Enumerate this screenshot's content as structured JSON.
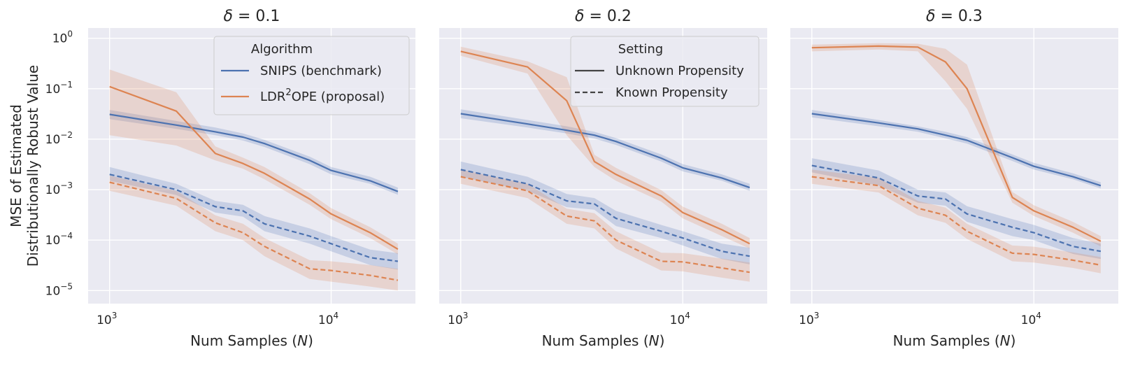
{
  "colors": {
    "snips": "#4c72b0",
    "ldr": "#dd8452",
    "panel_bg": "#eaeaf2",
    "grid": "#ffffff",
    "legend_line": "#444444"
  },
  "y_axis_label_line1": "MSE of Estimated",
  "y_axis_label_line2": "Distributionally Robust Value",
  "x_axis_label_prefix": "Num Samples (",
  "x_axis_label_var": "N",
  "x_axis_label_suffix": ")",
  "title_prefix": "δ",
  "title_mid": " = ",
  "legend_algorithm": {
    "title": "Algorithm",
    "entries": [
      {
        "label": "SNIPS (benchmark)",
        "series": "snips"
      },
      {
        "label_pre": "LDR",
        "label_sup": "2",
        "label_post": "OPE (proposal)",
        "series": "ldr"
      }
    ]
  },
  "legend_setting": {
    "title": "Setting",
    "entries": [
      {
        "label": "Unknown Propensity",
        "style": "solid"
      },
      {
        "label": "Known Propensity",
        "style": "dashed"
      }
    ]
  },
  "chart_data": [
    {
      "type": "line",
      "title": "δ = 0.1",
      "delta": "0.1",
      "x": [
        1000,
        2000,
        3000,
        4000,
        5000,
        8000,
        10000,
        15000,
        20000
      ],
      "xscale": "log",
      "yscale": "log",
      "xlim": [
        800,
        24000
      ],
      "ylim": [
        5.5e-06,
        1.6
      ],
      "xticks": [
        {
          "base": "10",
          "exp": "3",
          "value": 1000
        },
        {
          "base": "10",
          "exp": "4",
          "value": 10000
        }
      ],
      "yticks": [
        {
          "base": "10",
          "exp": "−5",
          "value": 1e-05
        },
        {
          "base": "10",
          "exp": "−4",
          "value": 0.0001
        },
        {
          "base": "10",
          "exp": "−3",
          "value": 0.001
        },
        {
          "base": "10",
          "exp": "−2",
          "value": 0.01
        },
        {
          "base": "10",
          "exp": "−1",
          "value": 0.1
        },
        {
          "base": "10",
          "exp": "0",
          "value": 1
        }
      ],
      "legend": "algorithm",
      "series": [
        {
          "name": "SNIPS (benchmark) – Unknown Propensity",
          "key": "snips",
          "style": "solid",
          "values": [
            0.031,
            0.019,
            0.014,
            0.011,
            0.0082,
            0.0038,
            0.0024,
            0.0015,
            0.00092
          ],
          "lower": [
            0.025,
            0.016,
            0.012,
            0.0094,
            0.007,
            0.0032,
            0.002,
            0.0013,
            0.00079
          ],
          "upper": [
            0.038,
            0.023,
            0.017,
            0.013,
            0.0097,
            0.0045,
            0.0028,
            0.0018,
            0.0011
          ]
        },
        {
          "name": "LDR2OPE (proposal) – Unknown Propensity",
          "key": "ldr",
          "style": "solid",
          "values": [
            0.11,
            0.036,
            0.0052,
            0.0033,
            0.0021,
            0.00065,
            0.00033,
            0.00014,
            6.6e-05
          ],
          "lower": [
            0.012,
            0.0075,
            0.0038,
            0.0026,
            0.0016,
            0.0005,
            0.00026,
            0.00011,
            5.2e-05
          ],
          "upper": [
            0.24,
            0.085,
            0.0072,
            0.0043,
            0.0028,
            0.00085,
            0.00043,
            0.00018,
            8.5e-05
          ]
        },
        {
          "name": "SNIPS (benchmark) – Known Propensity",
          "key": "snips",
          "style": "dashed",
          "values": [
            0.002,
            0.001,
            0.00046,
            0.00038,
            0.00021,
            0.00012,
            8.5e-05,
            4.5e-05,
            3.8e-05
          ],
          "lower": [
            0.0015,
            0.00078,
            0.00035,
            0.00029,
            0.00015,
            8.5e-05,
            6e-05,
            3.2e-05,
            2.6e-05
          ],
          "upper": [
            0.0028,
            0.0013,
            0.0006,
            0.0005,
            0.0003,
            0.00017,
            0.00012,
            6.5e-05,
            5.5e-05
          ]
        },
        {
          "name": "LDR2OPE (proposal) – Known Propensity",
          "key": "ldr",
          "style": "dashed",
          "values": [
            0.0014,
            0.00067,
            0.00022,
            0.00014,
            7.5e-05,
            2.7e-05,
            2.5e-05,
            2e-05,
            1.6e-05
          ],
          "lower": [
            0.00095,
            0.00048,
            0.00015,
            0.0001,
            4.8e-05,
            1.7e-05,
            1.5e-05,
            1.2e-05,
            1e-05
          ],
          "upper": [
            0.0019,
            0.00095,
            0.00031,
            0.00021,
            0.00011,
            4e-05,
            3.8e-05,
            3.2e-05,
            2.7e-05
          ]
        }
      ]
    },
    {
      "type": "line",
      "title": "δ = 0.2",
      "delta": "0.2",
      "x": [
        1000,
        2000,
        3000,
        4000,
        5000,
        8000,
        10000,
        15000,
        20000
      ],
      "xscale": "log",
      "yscale": "log",
      "xlim": [
        800,
        24000
      ],
      "ylim": [
        5.5e-06,
        1.6
      ],
      "xticks": [
        {
          "base": "10",
          "exp": "3",
          "value": 1000
        },
        {
          "base": "10",
          "exp": "4",
          "value": 10000
        }
      ],
      "yticks": [],
      "legend": "setting",
      "series": [
        {
          "name": "SNIPS (benchmark) – Unknown Propensity",
          "key": "snips",
          "style": "solid",
          "values": [
            0.032,
            0.02,
            0.015,
            0.012,
            0.009,
            0.0042,
            0.0027,
            0.0017,
            0.0011
          ],
          "lower": [
            0.026,
            0.017,
            0.013,
            0.0103,
            0.0077,
            0.0036,
            0.0023,
            0.0015,
            0.00095
          ],
          "upper": [
            0.039,
            0.024,
            0.018,
            0.014,
            0.0105,
            0.005,
            0.0032,
            0.002,
            0.0013
          ]
        },
        {
          "name": "LDR2OPE (proposal) – Unknown Propensity",
          "key": "ldr",
          "style": "solid",
          "values": [
            0.55,
            0.27,
            0.058,
            0.0036,
            0.002,
            0.00075,
            0.00035,
            0.00016,
            8.5e-05
          ],
          "lower": [
            0.45,
            0.2,
            0.012,
            0.0028,
            0.0015,
            0.00058,
            0.00027,
            0.00012,
            6.8e-05
          ],
          "upper": [
            0.68,
            0.35,
            0.17,
            0.0049,
            0.0027,
            0.00098,
            0.00046,
            0.00021,
            0.00011
          ]
        },
        {
          "name": "SNIPS (benchmark) – Known Propensity",
          "key": "snips",
          "style": "dashed",
          "values": [
            0.0025,
            0.0013,
            0.0006,
            0.00052,
            0.00027,
            0.00015,
            0.00011,
            6e-05,
            4.8e-05
          ],
          "lower": [
            0.0018,
            0.00095,
            0.00045,
            0.0004,
            0.00019,
            0.00011,
            7.8e-05,
            4.2e-05,
            3.3e-05
          ],
          "upper": [
            0.0036,
            0.0018,
            0.00082,
            0.00068,
            0.00038,
            0.0002,
            0.00015,
            8.5e-05,
            7e-05
          ]
        },
        {
          "name": "LDR2OPE (proposal) – Known Propensity",
          "key": "ldr",
          "style": "dashed",
          "values": [
            0.0018,
            0.00095,
            0.0003,
            0.00024,
            0.0001,
            3.8e-05,
            3.7e-05,
            2.8e-05,
            2.3e-05
          ],
          "lower": [
            0.0013,
            0.00068,
            0.00021,
            0.00017,
            6.8e-05,
            2.5e-05,
            2.4e-05,
            1.8e-05,
            1.5e-05
          ],
          "upper": [
            0.0025,
            0.0013,
            0.00042,
            0.00034,
            0.00015,
            5.6e-05,
            5.5e-05,
            4.3e-05,
            3.6e-05
          ]
        }
      ]
    },
    {
      "type": "line",
      "title": "δ = 0.3",
      "delta": "0.3",
      "x": [
        1000,
        2000,
        3000,
        4000,
        5000,
        8000,
        10000,
        15000,
        20000
      ],
      "xscale": "log",
      "yscale": "log",
      "xlim": [
        800,
        24000
      ],
      "ylim": [
        5.5e-06,
        1.6
      ],
      "xticks": [
        {
          "base": "10",
          "exp": "3",
          "value": 1000
        },
        {
          "base": "10",
          "exp": "4",
          "value": 10000
        }
      ],
      "yticks": [],
      "legend": "none",
      "series": [
        {
          "name": "SNIPS (benchmark) – Unknown Propensity",
          "key": "snips",
          "style": "solid",
          "values": [
            0.032,
            0.021,
            0.016,
            0.012,
            0.0095,
            0.0043,
            0.0029,
            0.0018,
            0.0012
          ],
          "lower": [
            0.027,
            0.018,
            0.014,
            0.0104,
            0.0082,
            0.0037,
            0.0025,
            0.0016,
            0.00105
          ],
          "upper": [
            0.038,
            0.024,
            0.018,
            0.014,
            0.011,
            0.005,
            0.0034,
            0.0021,
            0.0014
          ]
        },
        {
          "name": "LDR2OPE (proposal) – Unknown Propensity",
          "key": "ldr",
          "style": "solid",
          "values": [
            0.65,
            0.7,
            0.67,
            0.34,
            0.1,
            0.0007,
            0.00038,
            0.00018,
            9.5e-05
          ],
          "lower": [
            0.55,
            0.6,
            0.55,
            0.14,
            0.04,
            0.00055,
            0.0003,
            0.00014,
            7.5e-05
          ],
          "upper": [
            0.75,
            0.8,
            0.78,
            0.62,
            0.3,
            0.0009,
            0.00049,
            0.00023,
            0.00012
          ]
        },
        {
          "name": "SNIPS (benchmark) – Known Propensity",
          "key": "snips",
          "style": "dashed",
          "values": [
            0.003,
            0.0017,
            0.00075,
            0.00065,
            0.00033,
            0.00018,
            0.00014,
            7.5e-05,
            6e-05
          ],
          "lower": [
            0.0022,
            0.0012,
            0.00055,
            0.00048,
            0.00023,
            0.00012,
            0.0001,
            5.3e-05,
            4.2e-05
          ],
          "upper": [
            0.0042,
            0.0024,
            0.001,
            0.00088,
            0.00047,
            0.00026,
            0.0002,
            0.00011,
            8.5e-05
          ]
        },
        {
          "name": "LDR2OPE (proposal) – Known Propensity",
          "key": "ldr",
          "style": "dashed",
          "values": [
            0.0018,
            0.0012,
            0.00043,
            0.00031,
            0.00015,
            5.5e-05,
            5.2e-05,
            4e-05,
            3.2e-05
          ],
          "lower": [
            0.0013,
            0.00088,
            0.00031,
            0.00022,
            0.000105,
            3.8e-05,
            3.6e-05,
            2.8e-05,
            2.2e-05
          ],
          "upper": [
            0.0025,
            0.0017,
            0.0006,
            0.00044,
            0.00021,
            7.8e-05,
            7.4e-05,
            5.7e-05,
            4.6e-05
          ]
        }
      ]
    }
  ]
}
